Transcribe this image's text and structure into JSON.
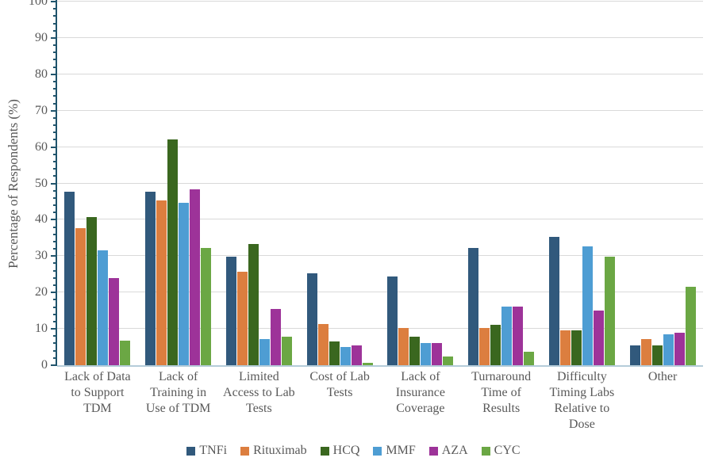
{
  "colors": {
    "grid": "#D9D9D9",
    "y_axis": "#20546C",
    "x_axis": "#B5CCD9",
    "text": "#595959"
  },
  "chart_data": {
    "type": "bar",
    "title": "",
    "xlabel": "",
    "ylabel": "Percentage of Respondents (%)",
    "ylim": [
      0,
      100
    ],
    "ytick_step": 10,
    "minor_tick_step": 2,
    "ytick_labels": [
      "0",
      "10",
      "20",
      "30",
      "40",
      "50",
      "60",
      "70",
      "80",
      "90",
      "100"
    ],
    "grid": "horizontal-major",
    "legend_position": "bottom-center",
    "categories": [
      "Lack of Data to Support TDM",
      "Lack of Training in Use of TDM",
      "Limited Access to Lab Tests",
      "Cost of Lab Tests",
      "Lack of Insurance Coverage",
      "Turnaround Time of Results",
      "Difficulty Timing Labs Relative to Dose",
      "Other"
    ],
    "category_lines": [
      [
        "Lack of Data",
        "to Support",
        "TDM"
      ],
      [
        "Lack of",
        "Training in",
        "Use of TDM"
      ],
      [
        "Limited",
        "Access to Lab",
        "Tests"
      ],
      [
        "Cost of Lab",
        "Tests"
      ],
      [
        "Lack of",
        "Insurance",
        "Coverage"
      ],
      [
        "Turnaround",
        "Time of",
        "Results"
      ],
      [
        "Difficulty",
        "Timing Labs",
        "Relative to",
        "Dose"
      ],
      [
        "Other"
      ]
    ],
    "series": [
      {
        "name": "TNFi",
        "color": "#31597C",
        "values": [
          47.8,
          47.8,
          29.9,
          25.2,
          24.5,
          32.2,
          35.2,
          5.4
        ]
      },
      {
        "name": "Rituximab",
        "color": "#DC7E3F",
        "values": [
          37.7,
          45.3,
          25.8,
          11.3,
          10.2,
          10.2,
          9.6,
          7.2
        ]
      },
      {
        "name": "HCQ",
        "color": "#3A671F",
        "values": [
          40.7,
          62.2,
          33.3,
          6.6,
          7.8,
          11.1,
          9.6,
          5.4
        ]
      },
      {
        "name": "MMF",
        "color": "#4E9DD3",
        "values": [
          31.6,
          44.7,
          7.2,
          5.0,
          6.0,
          16.1,
          32.7,
          8.5
        ]
      },
      {
        "name": "AZA",
        "color": "#9D3399",
        "values": [
          24.0,
          48.4,
          15.5,
          5.5,
          6.0,
          16.1,
          15.0,
          9.0
        ]
      },
      {
        "name": "CYC",
        "color": "#6BA744",
        "values": [
          6.7,
          32.2,
          7.9,
          0.6,
          2.4,
          3.7,
          29.9,
          21.5
        ]
      }
    ]
  }
}
